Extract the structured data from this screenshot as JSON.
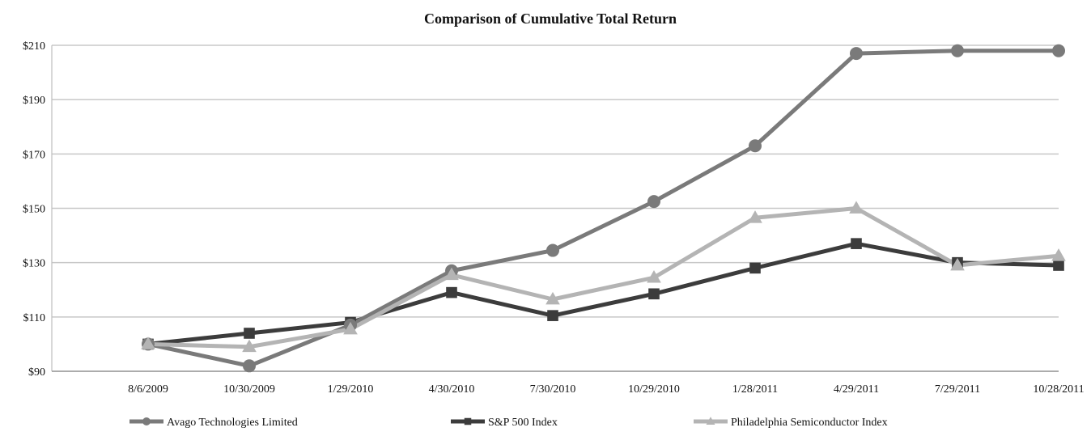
{
  "chart_data": {
    "type": "line",
    "title": "Comparison of Cumulative Total Return",
    "xlabel": "",
    "ylabel": "",
    "categories": [
      "8/6/2009",
      "10/30/2009",
      "1/29/2010",
      "4/30/2010",
      "7/30/2010",
      "10/29/2010",
      "1/28/2011",
      "4/29/2011",
      "7/29/2011",
      "10/28/2011"
    ],
    "ylim": [
      90,
      210
    ],
    "yticks": [
      90,
      110,
      130,
      150,
      170,
      190,
      210
    ],
    "ytick_labels": [
      "$90",
      "$110",
      "$130",
      "$150",
      "$170",
      "$190",
      "$210"
    ],
    "grid": true,
    "legend_position": "bottom",
    "series": [
      {
        "name": "Avago Technologies Limited",
        "color": "#7a7a7a",
        "marker": "circle",
        "values": [
          100,
          92,
          107,
          127,
          134.5,
          152.5,
          173,
          207,
          208,
          208
        ]
      },
      {
        "name": "S&P 500 Index",
        "color": "#3c3c3c",
        "marker": "square",
        "values": [
          100,
          104,
          108,
          119,
          110.5,
          118.5,
          128,
          137,
          130,
          129
        ]
      },
      {
        "name": "Philadelphia Semiconductor Index",
        "color": "#b4b4b4",
        "marker": "triangle",
        "values": [
          100,
          99,
          105.5,
          125.5,
          116.5,
          124.5,
          146.5,
          150,
          129,
          132.5
        ]
      }
    ]
  }
}
